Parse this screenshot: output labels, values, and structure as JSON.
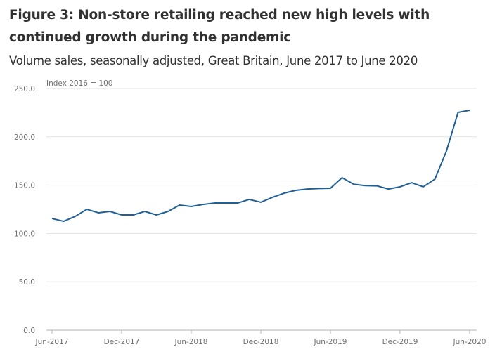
{
  "title": "Figure 3: Non-store retailing reached new high levels with continued growth during the pandemic",
  "subtitle": "Volume sales, seasonally adjusted, Great Britain, June 2017 to June 2020",
  "chart_data": {
    "type": "line",
    "title": "Figure 3: Non-store retailing reached new high levels with continued growth during the pandemic",
    "subtitle": "Volume sales, seasonally adjusted, Great Britain, June 2017 to June 2020",
    "ylabel": "Index 2016 = 100",
    "xlabel": "",
    "ylim": [
      0,
      250
    ],
    "yticks": [
      "0.0",
      "50.0",
      "100.0",
      "150.0",
      "200.0",
      "250.0"
    ],
    "xtick_labels": [
      "Jun-2017",
      "Dec-2017",
      "Jun-2018",
      "Dec-2018",
      "Jun-2019",
      "Dec-2019",
      "Jun-2020"
    ],
    "grid": true,
    "color": "#206095",
    "series": [
      {
        "name": "Non-store retailing",
        "x": [
          "Jun-2017",
          "Jul-2017",
          "Aug-2017",
          "Sep-2017",
          "Oct-2017",
          "Nov-2017",
          "Dec-2017",
          "Jan-2018",
          "Feb-2018",
          "Mar-2018",
          "Apr-2018",
          "May-2018",
          "Jun-2018",
          "Jul-2018",
          "Aug-2018",
          "Sep-2018",
          "Oct-2018",
          "Nov-2018",
          "Dec-2018",
          "Jan-2019",
          "Feb-2019",
          "Mar-2019",
          "Apr-2019",
          "May-2019",
          "Jun-2019",
          "Jul-2019",
          "Aug-2019",
          "Sep-2019",
          "Oct-2019",
          "Nov-2019",
          "Dec-2019",
          "Jan-2020",
          "Feb-2020",
          "Mar-2020",
          "Apr-2020",
          "May-2020",
          "Jun-2020"
        ],
        "values": [
          115.5,
          112.6,
          117.7,
          125.0,
          121.4,
          122.8,
          119.2,
          119.2,
          122.8,
          119.2,
          122.8,
          129.4,
          127.9,
          130.0,
          131.5,
          131.5,
          131.5,
          135.2,
          132.3,
          137.4,
          141.7,
          144.6,
          146.0,
          146.5,
          146.8,
          157.7,
          151.0,
          149.5,
          149.3,
          146.0,
          148.3,
          152.6,
          148.3,
          156.2,
          185.3,
          225.3,
          227.5
        ]
      }
    ]
  }
}
